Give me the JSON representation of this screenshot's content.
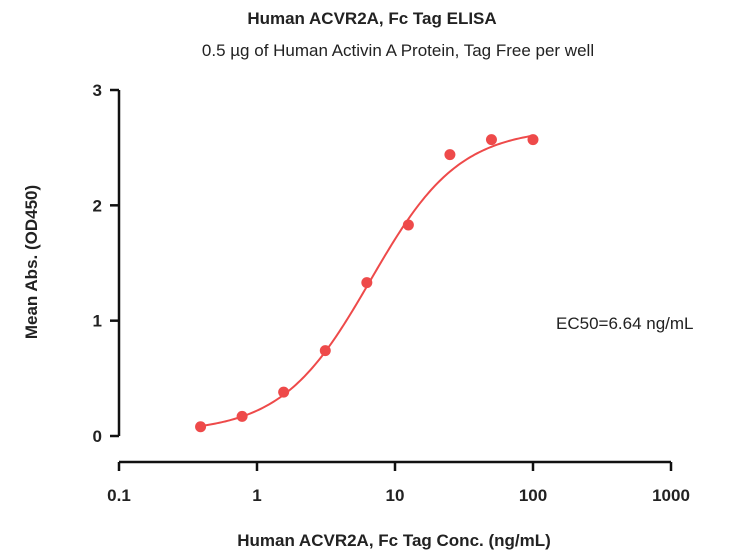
{
  "chart_data": {
    "type": "scatter",
    "title": "Human ACVR2A, Fc Tag ELISA",
    "subtitle": "0.5 µg of Human Activin A Protein, Tag Free per well",
    "xlabel": "Human ACVR2A, Fc Tag Conc. (ng/mL)",
    "ylabel": "Mean Abs. (OD450)",
    "x_scale": "log",
    "xlim": [
      0.1,
      1000
    ],
    "ylim": [
      0,
      3
    ],
    "x_ticks": [
      {
        "value": 0.1,
        "label": "0.1"
      },
      {
        "value": 1,
        "label": "1"
      },
      {
        "value": 10,
        "label": "10"
      },
      {
        "value": 100,
        "label": "100"
      },
      {
        "value": 1000,
        "label": "1000"
      }
    ],
    "y_ticks": [
      {
        "value": 0,
        "label": "0"
      },
      {
        "value": 1,
        "label": "1"
      },
      {
        "value": 2,
        "label": "2"
      },
      {
        "value": 3,
        "label": "3"
      }
    ],
    "series": [
      {
        "color": "#ee4a4a",
        "x": [
          0.39,
          0.78,
          1.56,
          3.125,
          6.25,
          12.5,
          25,
          50,
          100
        ],
        "y": [
          0.08,
          0.17,
          0.38,
          0.74,
          1.33,
          1.83,
          2.44,
          2.57,
          2.57
        ]
      }
    ],
    "fit_curve": {
      "model": "4PL",
      "bottom": 0.03,
      "top": 2.67,
      "ec50": 6.64,
      "hill": 1.35,
      "color": "#ee4a4a"
    },
    "annotation": "EC50=6.64 ng/mL",
    "grid": false,
    "legend": "none"
  }
}
